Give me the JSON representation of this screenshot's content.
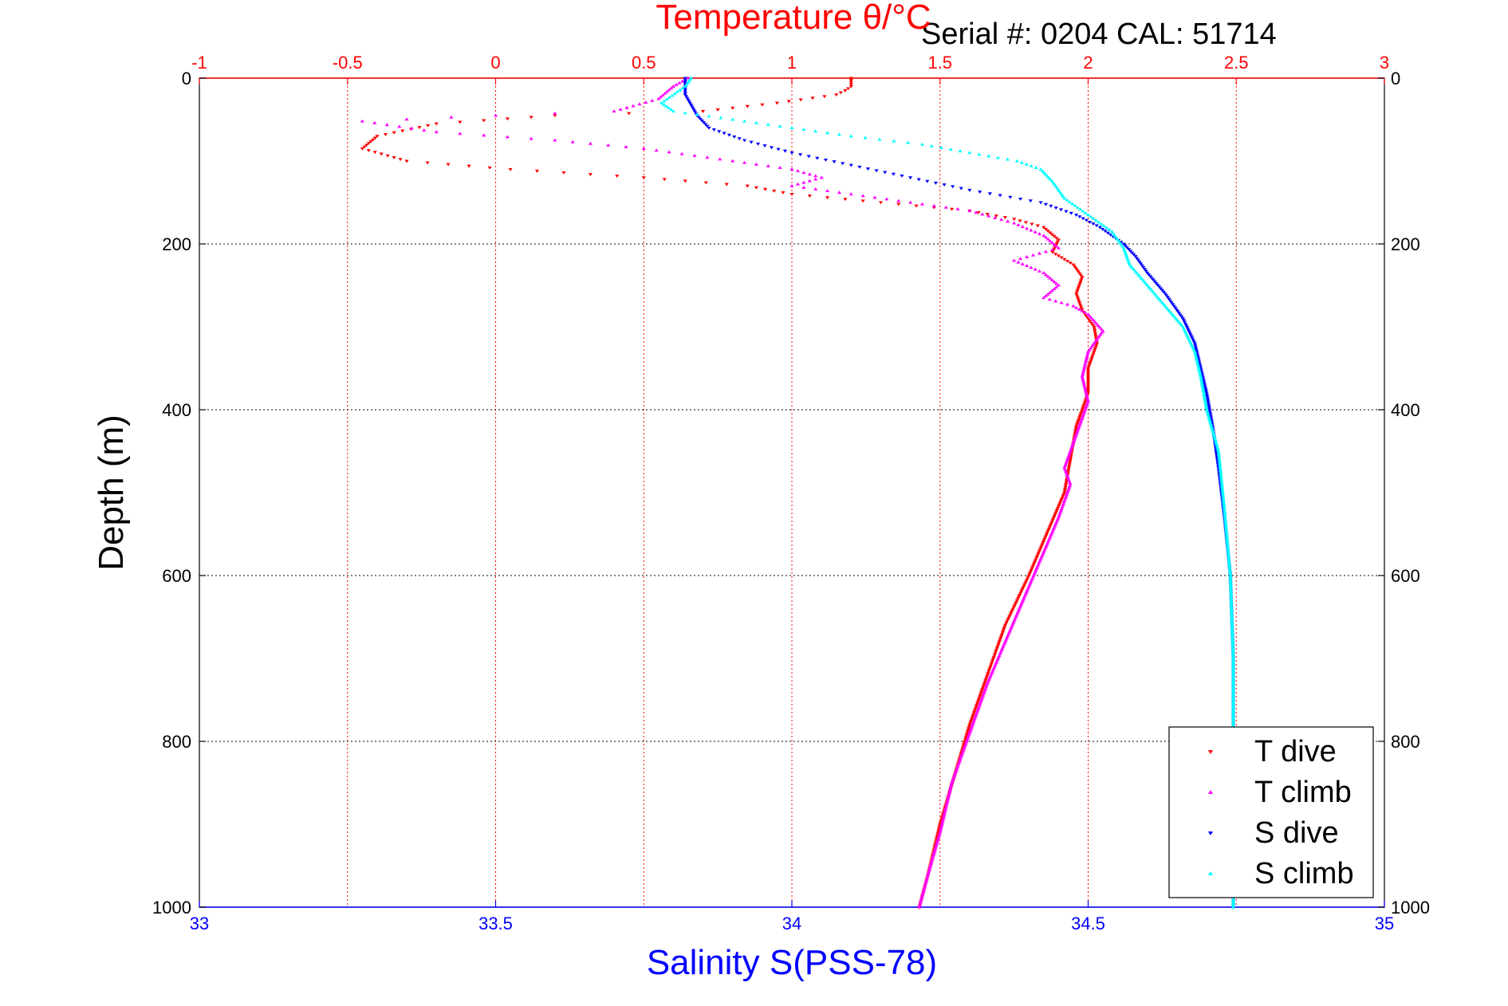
{
  "chart_data": {
    "type": "scatter",
    "header": "Serial #: 0204   CAL: 51714",
    "title_top": "Temperature θ/°C",
    "xlabel_bottom": "Salinity S(PSS-78)",
    "ylabel": "Depth (m)",
    "x_top": {
      "lim": [
        -1,
        3
      ],
      "ticks": [
        -1,
        -0.5,
        0,
        0.5,
        1,
        1.5,
        2,
        2.5,
        3
      ],
      "tick_labels": [
        "-1",
        "-0.5",
        "0",
        "0.5",
        "1",
        "1.5",
        "2",
        "2.5",
        "3"
      ],
      "color": "#ff0000"
    },
    "x_bottom": {
      "lim": [
        33,
        35
      ],
      "ticks": [
        33,
        33.5,
        34,
        34.5,
        35
      ],
      "tick_labels": [
        "33",
        "33.5",
        "34",
        "34.5",
        "35"
      ],
      "color": "#0000ff"
    },
    "y": {
      "lim": [
        0,
        1000
      ],
      "reversed": true,
      "ticks": [
        0,
        200,
        400,
        600,
        800,
        1000
      ],
      "tick_labels": [
        "0",
        "200",
        "400",
        "600",
        "800",
        "1000"
      ]
    },
    "grid": true,
    "legend_position": "bottom-right",
    "series": [
      {
        "name": "T dive",
        "axis": "temperature",
        "marker": "triangle-down",
        "color": "#ff0000",
        "points": [
          [
            1.2,
            0
          ],
          [
            1.2,
            5
          ],
          [
            1.2,
            10
          ],
          [
            1.18,
            15
          ],
          [
            1.15,
            20
          ],
          [
            0.95,
            30
          ],
          [
            0.7,
            40
          ],
          [
            0.2,
            45
          ],
          [
            -0.2,
            55
          ],
          [
            -0.4,
            70
          ],
          [
            -0.45,
            85
          ],
          [
            -0.3,
            100
          ],
          [
            0.05,
            110
          ],
          [
            0.5,
            120
          ],
          [
            0.85,
            130
          ],
          [
            1.0,
            140
          ],
          [
            1.3,
            150
          ],
          [
            1.6,
            160
          ],
          [
            1.75,
            170
          ],
          [
            1.85,
            180
          ],
          [
            1.9,
            195
          ],
          [
            1.88,
            210
          ],
          [
            1.95,
            225
          ],
          [
            1.98,
            240
          ],
          [
            1.96,
            260
          ],
          [
            1.98,
            280
          ],
          [
            2.02,
            300
          ],
          [
            2.03,
            320
          ],
          [
            2.0,
            350
          ],
          [
            2.0,
            380
          ],
          [
            1.96,
            420
          ],
          [
            1.94,
            460
          ],
          [
            1.92,
            500
          ],
          [
            1.86,
            550
          ],
          [
            1.8,
            600
          ],
          [
            1.72,
            660
          ],
          [
            1.66,
            720
          ],
          [
            1.6,
            780
          ],
          [
            1.55,
            840
          ],
          [
            1.5,
            900
          ],
          [
            1.46,
            960
          ],
          [
            1.43,
            1000
          ]
        ]
      },
      {
        "name": "T climb",
        "axis": "temperature",
        "marker": "triangle-up",
        "color": "#ff00ff",
        "points": [
          [
            0.65,
            0
          ],
          [
            0.6,
            10
          ],
          [
            0.55,
            25
          ],
          [
            0.4,
            40
          ],
          [
            0.0,
            45
          ],
          [
            -0.45,
            52
          ],
          [
            -0.2,
            65
          ],
          [
            0.2,
            75
          ],
          [
            0.5,
            85
          ],
          [
            0.8,
            100
          ],
          [
            1.0,
            110
          ],
          [
            1.1,
            120
          ],
          [
            1.0,
            130
          ],
          [
            1.2,
            140
          ],
          [
            1.4,
            150
          ],
          [
            1.6,
            160
          ],
          [
            1.75,
            175
          ],
          [
            1.85,
            190
          ],
          [
            1.9,
            205
          ],
          [
            1.75,
            220
          ],
          [
            1.85,
            235
          ],
          [
            1.9,
            250
          ],
          [
            1.85,
            265
          ],
          [
            1.95,
            275
          ],
          [
            2.0,
            285
          ],
          [
            2.05,
            305
          ],
          [
            2.0,
            330
          ],
          [
            1.98,
            360
          ],
          [
            2.0,
            390
          ],
          [
            1.96,
            430
          ],
          [
            1.92,
            470
          ],
          [
            1.94,
            490
          ],
          [
            1.9,
            530
          ],
          [
            1.84,
            580
          ],
          [
            1.78,
            630
          ],
          [
            1.72,
            680
          ],
          [
            1.66,
            730
          ],
          [
            1.6,
            790
          ],
          [
            1.54,
            850
          ],
          [
            1.5,
            910
          ],
          [
            1.46,
            960
          ],
          [
            1.43,
            1000
          ]
        ]
      },
      {
        "name": "S dive",
        "axis": "salinity",
        "marker": "triangle-down",
        "color": "#0000ff",
        "points": [
          [
            33.82,
            0
          ],
          [
            33.82,
            20
          ],
          [
            33.84,
            45
          ],
          [
            33.86,
            60
          ],
          [
            33.92,
            75
          ],
          [
            34.0,
            90
          ],
          [
            34.1,
            105
          ],
          [
            34.2,
            120
          ],
          [
            34.3,
            135
          ],
          [
            34.42,
            150
          ],
          [
            34.48,
            165
          ],
          [
            34.52,
            180
          ],
          [
            34.56,
            200
          ],
          [
            34.58,
            215
          ],
          [
            34.6,
            235
          ],
          [
            34.63,
            260
          ],
          [
            34.66,
            290
          ],
          [
            34.68,
            320
          ],
          [
            34.69,
            350
          ],
          [
            34.7,
            380
          ],
          [
            34.71,
            420
          ],
          [
            34.72,
            470
          ],
          [
            34.73,
            530
          ],
          [
            34.74,
            600
          ],
          [
            34.745,
            700
          ],
          [
            34.745,
            800
          ],
          [
            34.745,
            900
          ],
          [
            34.745,
            1000
          ]
        ]
      },
      {
        "name": "S climb",
        "axis": "salinity",
        "marker": "triangle-up",
        "color": "#00ffff",
        "points": [
          [
            33.83,
            0
          ],
          [
            33.82,
            10
          ],
          [
            33.78,
            30
          ],
          [
            33.8,
            40
          ],
          [
            33.9,
            50
          ],
          [
            34.0,
            60
          ],
          [
            34.1,
            70
          ],
          [
            34.22,
            80
          ],
          [
            34.3,
            90
          ],
          [
            34.38,
            100
          ],
          [
            34.42,
            110
          ],
          [
            34.44,
            125
          ],
          [
            34.46,
            145
          ],
          [
            34.5,
            165
          ],
          [
            34.54,
            185
          ],
          [
            34.56,
            205
          ],
          [
            34.57,
            225
          ],
          [
            34.6,
            250
          ],
          [
            34.63,
            275
          ],
          [
            34.66,
            300
          ],
          [
            34.68,
            330
          ],
          [
            34.69,
            360
          ],
          [
            34.7,
            400
          ],
          [
            34.72,
            450
          ],
          [
            34.73,
            520
          ],
          [
            34.74,
            600
          ],
          [
            34.745,
            700
          ],
          [
            34.745,
            800
          ],
          [
            34.745,
            900
          ],
          [
            34.745,
            1000
          ]
        ]
      }
    ]
  }
}
